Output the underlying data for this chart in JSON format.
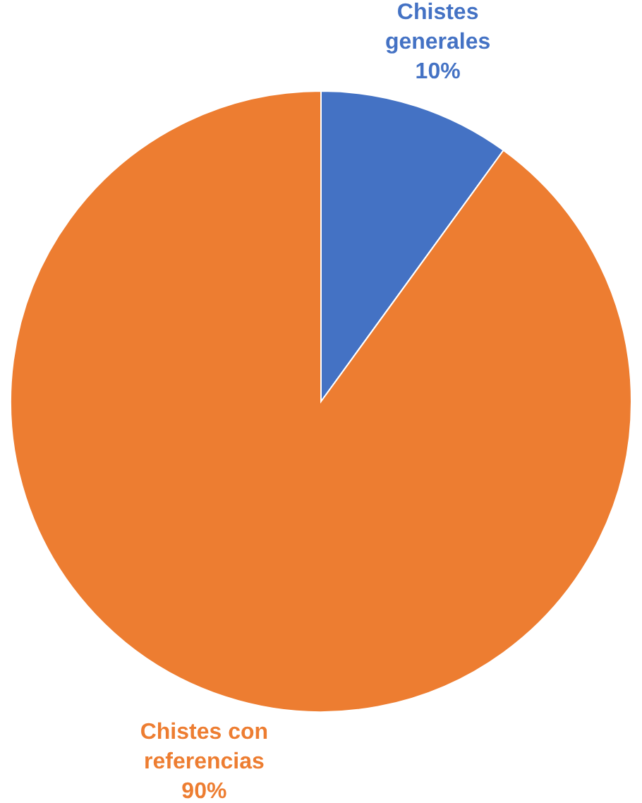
{
  "chart_data": {
    "type": "pie",
    "categories": [
      "Chistes generales",
      "Chistes con referencias"
    ],
    "values": [
      10,
      90
    ],
    "colors": [
      "#4472c4",
      "#ed7d31"
    ],
    "value_labels": [
      "10%",
      "90%"
    ]
  }
}
